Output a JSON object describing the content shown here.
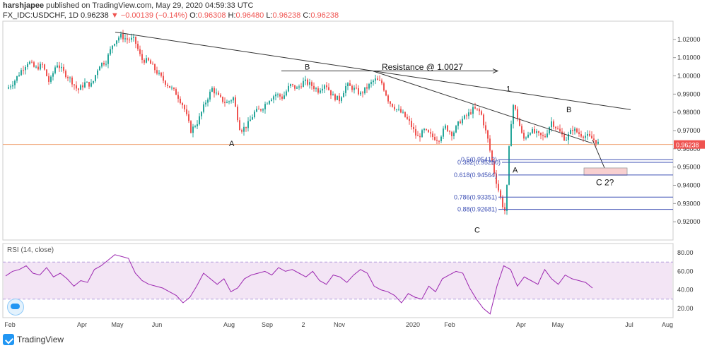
{
  "header": {
    "author": "harshjapee",
    "published": "published on TradingView.com, May 29, 2020 04:59:33 UTC",
    "symbol": "FX_IDC:USDCHF, 1D",
    "last": "0.96238",
    "change": "−0.00139 (−0.14%)",
    "o_label": "O:",
    "o_value": "0.96308",
    "h_label": "H:",
    "h_value": "0.96480",
    "l_label": "L:",
    "l_value": "0.96238",
    "c_label": "C:",
    "c_value": "0.96238"
  },
  "rsi_label": "RSI (14, close)",
  "footer": {
    "brand": "TradingView"
  },
  "colors": {
    "up": "#26a69a",
    "down": "#ef5350",
    "rsi": "#9c27b0",
    "rsi_band": "#f3e5f5",
    "fib": "#3f51b5",
    "price_line": "#f0a070"
  },
  "chart_data": {
    "type": "candlestick",
    "price_axis": {
      "min": 0.91,
      "max": 1.03,
      "ticks": [
        "1.02000",
        "1.01000",
        "1.00000",
        "0.99000",
        "0.98000",
        "0.97000",
        "0.96000",
        "0.95000",
        "0.94000",
        "0.93000",
        "0.92000"
      ],
      "current": "0.96238"
    },
    "rsi_axis": {
      "ticks": [
        "80.00",
        "60.00",
        "40.00",
        "20.00"
      ],
      "band": [
        30,
        70
      ]
    },
    "time_axis": [
      "Feb",
      "Apr",
      "May",
      "Jun",
      "Aug",
      "Sep",
      "2",
      "Nov",
      "2020",
      "Feb",
      "Apr",
      "May",
      "Jul",
      "Aug"
    ],
    "close_path": [
      [
        0,
        0.993
      ],
      [
        10,
        0.997
      ],
      [
        20,
        1.003
      ],
      [
        30,
        1.008
      ],
      [
        40,
        1.004
      ],
      [
        50,
        1.006
      ],
      [
        60,
        0.996
      ],
      [
        70,
        1.007
      ],
      [
        80,
        1.002
      ],
      [
        90,
        0.998
      ],
      [
        100,
        0.992
      ],
      [
        110,
        0.996
      ],
      [
        120,
        0.995
      ],
      [
        130,
        1.006
      ],
      [
        140,
        1.008
      ],
      [
        150,
        1.018
      ],
      [
        160,
        1.022
      ],
      [
        170,
        1.02
      ],
      [
        180,
        1.02
      ],
      [
        190,
        1.009
      ],
      [
        200,
        1.008
      ],
      [
        210,
        1.003
      ],
      [
        220,
        0.998
      ],
      [
        230,
        0.994
      ],
      [
        240,
        0.99
      ],
      [
        250,
        0.983
      ],
      [
        260,
        0.97
      ],
      [
        270,
        0.975
      ],
      [
        280,
        0.985
      ],
      [
        290,
        0.993
      ],
      [
        300,
        0.988
      ],
      [
        310,
        0.985
      ],
      [
        320,
        0.988
      ],
      [
        330,
        0.97
      ],
      [
        340,
        0.973
      ],
      [
        350,
        0.98
      ],
      [
        360,
        0.982
      ],
      [
        370,
        0.987
      ],
      [
        380,
        0.99
      ],
      [
        390,
        0.988
      ],
      [
        400,
        0.995
      ],
      [
        410,
        0.993
      ],
      [
        420,
        0.997
      ],
      [
        430,
        0.995
      ],
      [
        440,
        0.992
      ],
      [
        450,
        0.996
      ],
      [
        460,
        0.989
      ],
      [
        470,
        0.987
      ],
      [
        480,
        0.995
      ],
      [
        490,
        0.993
      ],
      [
        500,
        0.99
      ],
      [
        510,
        0.994
      ],
      [
        520,
        0.998
      ],
      [
        530,
        0.996
      ],
      [
        540,
        0.986
      ],
      [
        550,
        0.982
      ],
      [
        560,
        0.979
      ],
      [
        570,
        0.974
      ],
      [
        580,
        0.966
      ],
      [
        590,
        0.97
      ],
      [
        600,
        0.967
      ],
      [
        610,
        0.965
      ],
      [
        620,
        0.972
      ],
      [
        630,
        0.968
      ],
      [
        640,
        0.975
      ],
      [
        650,
        0.978
      ],
      [
        660,
        0.982
      ],
      [
        670,
        0.98
      ],
      [
        680,
        0.965
      ],
      [
        690,
        0.945
      ],
      [
        700,
        0.93
      ],
      [
        705,
        0.925
      ],
      [
        710,
        0.96
      ],
      [
        715,
        0.985
      ],
      [
        720,
        0.98
      ],
      [
        730,
        0.965
      ],
      [
        740,
        0.97
      ],
      [
        750,
        0.968
      ],
      [
        760,
        0.966
      ],
      [
        770,
        0.975
      ],
      [
        780,
        0.97
      ],
      [
        790,
        0.965
      ],
      [
        800,
        0.971
      ],
      [
        810,
        0.968
      ],
      [
        820,
        0.967
      ],
      [
        830,
        0.965
      ],
      [
        838,
        0.9624
      ]
    ],
    "fib_levels": [
      {
        "label": "0.382(0.95260)",
        "value": 0.9526
      },
      {
        "label": "0.5(0.95412)",
        "value": 0.9541
      },
      {
        "label": "0.618(0.94564)",
        "value": 0.94564
      },
      {
        "label": "0.786(0.93351)",
        "value": 0.93351
      },
      {
        "label": "0.88(0.92681)",
        "value": 0.92681
      }
    ],
    "annotations": {
      "resistance": "Resistance @ 1.0027",
      "b1": "B",
      "a1": "A",
      "c1": "C",
      "one": "1",
      "a2": "A",
      "b2": "B",
      "c2": "C 2?"
    },
    "rsi_values": [
      55,
      60,
      62,
      66,
      58,
      56,
      64,
      54,
      58,
      52,
      44,
      50,
      48,
      62,
      66,
      72,
      78,
      76,
      74,
      58,
      50,
      46,
      44,
      42,
      38,
      34,
      26,
      32,
      44,
      58,
      52,
      46,
      52,
      38,
      42,
      52,
      56,
      58,
      60,
      56,
      64,
      60,
      62,
      58,
      54,
      60,
      50,
      46,
      56,
      54,
      48,
      56,
      62,
      58,
      44,
      40,
      38,
      34,
      26,
      36,
      32,
      30,
      44,
      38,
      52,
      56,
      60,
      58,
      42,
      30,
      20,
      14,
      44,
      66,
      62,
      44,
      54,
      50,
      46,
      62,
      52,
      46,
      56,
      52,
      50,
      48,
      42
    ]
  }
}
